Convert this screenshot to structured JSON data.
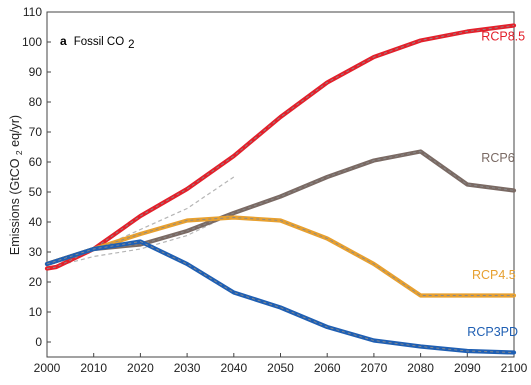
{
  "chart_data": {
    "type": "line",
    "panel_letter": "a",
    "panel_title": "Fossil CO",
    "panel_title_sub": "2",
    "ylabel_prefix": "Emissions (GtCO",
    "ylabel_sub": "2",
    "ylabel_suffix": "eq/yr)",
    "xlabel": "",
    "xlim": [
      2000,
      2100
    ],
    "ylim": [
      -5,
      110
    ],
    "x_ticks": [
      2000,
      2010,
      2020,
      2030,
      2040,
      2050,
      2060,
      2070,
      2080,
      2090,
      2100
    ],
    "x_tick_labels": [
      "2000",
      "2010",
      "2020",
      "2030",
      "2040",
      "2050",
      "2060",
      "2070",
      "2080",
      "2090",
      "2100"
    ],
    "y_ticks": [
      0,
      10,
      20,
      30,
      40,
      50,
      60,
      70,
      80,
      90,
      100,
      110
    ],
    "y_tick_labels": [
      "0",
      "10",
      "20",
      "30",
      "40",
      "50",
      "60",
      "70",
      "80",
      "90",
      "100",
      "110"
    ],
    "grid": false,
    "reference_lines": [
      {
        "x": [
          2000,
          2010,
          2020,
          2030,
          2040
        ],
        "values": [
          26.5,
          30.5,
          37.5,
          44.5,
          55
        ]
      },
      {
        "x": [
          2000,
          2010,
          2020,
          2030,
          2040
        ],
        "values": [
          24.5,
          28.5,
          31,
          35.5,
          43
        ]
      }
    ],
    "series": [
      {
        "name": "RCP8.5",
        "color": "#e3202b",
        "x": [
          2000,
          2002,
          2010,
          2020,
          2030,
          2040,
          2050,
          2060,
          2070,
          2080,
          2090,
          2100
        ],
        "values": [
          24.5,
          25,
          31,
          42,
          51,
          62,
          75,
          86.5,
          95,
          100.5,
          103.5,
          105.5
        ]
      },
      {
        "name": "RCP6",
        "color": "#7a6a64",
        "x": [
          2000,
          2010,
          2020,
          2030,
          2040,
          2050,
          2060,
          2070,
          2080,
          2090,
          2100
        ],
        "values": [
          26,
          31,
          32.5,
          37,
          43,
          48.5,
          55,
          60.5,
          63.5,
          52.5,
          50.5
        ]
      },
      {
        "name": "RCP4.5",
        "color": "#e7a030",
        "x": [
          2000,
          2010,
          2020,
          2030,
          2040,
          2050,
          2060,
          2070,
          2080,
          2090,
          2100
        ],
        "values": [
          26,
          31,
          36,
          40.5,
          41.5,
          40.5,
          34.5,
          26,
          15.5,
          15.5,
          15.5
        ]
      },
      {
        "name": "RCP3PD",
        "color": "#1f5fb3",
        "x": [
          2000,
          2010,
          2020,
          2030,
          2040,
          2050,
          2060,
          2070,
          2080,
          2090,
          2100
        ],
        "values": [
          26,
          31,
          33.5,
          26,
          16.5,
          11.5,
          5,
          0.5,
          -1.5,
          -3,
          -3.5
        ]
      }
    ],
    "labels": [
      {
        "series": "RCP8.5",
        "x": 2093,
        "y": 100.5
      },
      {
        "series": "RCP6",
        "x": 2093,
        "y": 60
      },
      {
        "series": "RCP4.5",
        "x": 2091,
        "y": 21
      },
      {
        "series": "RCP3PD",
        "x": 2090,
        "y": 2
      }
    ]
  }
}
